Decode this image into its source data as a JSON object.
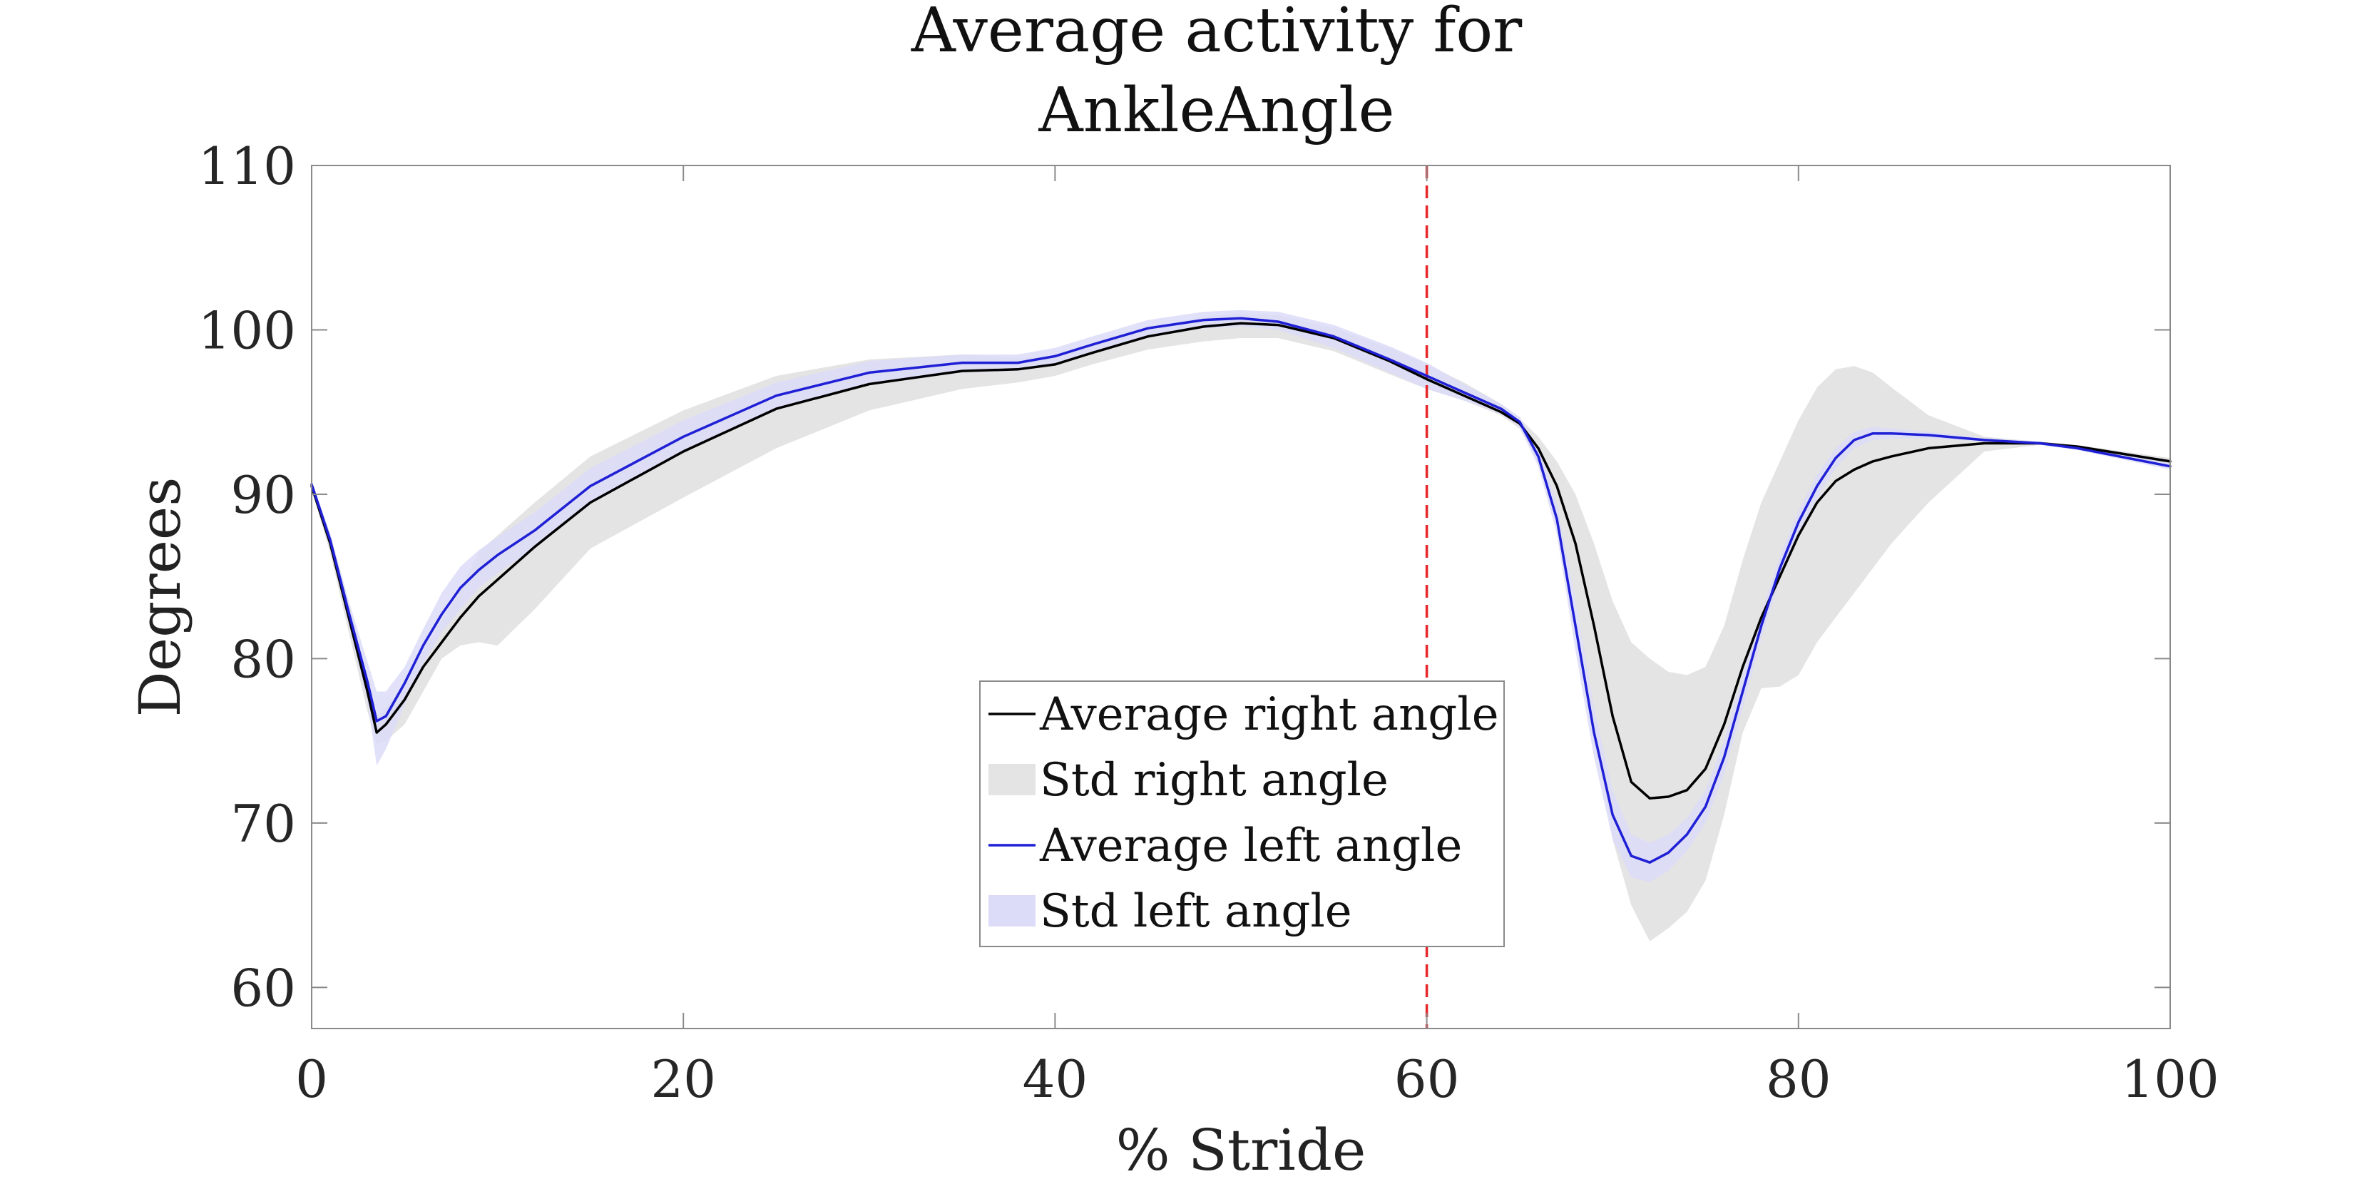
{
  "chart_data": {
    "type": "line",
    "title": [
      "Average activity for",
      "AnkleAngle"
    ],
    "xlabel": "% Stride",
    "ylabel": "Degrees",
    "xlim": [
      0,
      100
    ],
    "ylim": [
      57.5,
      110
    ],
    "xticks": [
      0,
      20,
      40,
      60,
      80,
      100
    ],
    "yticks": [
      60,
      70,
      80,
      90,
      100,
      110
    ],
    "x_tick_labels": [
      "0",
      "20",
      "40",
      "60",
      "80",
      "100"
    ],
    "y_tick_labels": [
      "60",
      "70",
      "80",
      "90",
      "100",
      "110"
    ],
    "grid": false,
    "legend_position": "bottom-center",
    "vertical_marker": {
      "x": 60,
      "color": "#e8262a",
      "style": "dashed"
    },
    "colors": {
      "right_line": "#000000",
      "right_band": "#e4e4e4",
      "left_line": "#1f1fd6",
      "left_band": "#dcdcf8"
    },
    "x": [
      0,
      1,
      2,
      3,
      3.5,
      4,
      5,
      6,
      7,
      8,
      9,
      10,
      12,
      15,
      20,
      25,
      30,
      35,
      38,
      40,
      42,
      45,
      48,
      50,
      52,
      55,
      58,
      60,
      62,
      64,
      65,
      66,
      67,
      68,
      69,
      70,
      71,
      72,
      73,
      74,
      75,
      76,
      77,
      78,
      79,
      80,
      81,
      82,
      83,
      84,
      85,
      87,
      90,
      93,
      95,
      100
    ],
    "series": [
      {
        "name": "Average right angle",
        "kind": "line",
        "values": [
          90.5,
          87.0,
          82.5,
          78.0,
          75.5,
          76.0,
          77.5,
          79.5,
          81.0,
          82.5,
          83.8,
          84.8,
          86.8,
          89.5,
          92.6,
          95.2,
          96.7,
          97.5,
          97.6,
          97.9,
          98.6,
          99.6,
          100.2,
          100.4,
          100.3,
          99.5,
          98.1,
          97.0,
          96.0,
          95.0,
          94.3,
          92.8,
          90.5,
          87.0,
          82.0,
          76.5,
          72.5,
          71.5,
          71.6,
          72.0,
          73.3,
          76.0,
          79.5,
          82.5,
          85.0,
          87.5,
          89.5,
          90.8,
          91.5,
          92.0,
          92.3,
          92.8,
          93.1,
          93.1,
          92.9,
          92.0
        ]
      },
      {
        "name": "Std right angle",
        "kind": "band",
        "upper": [
          90.7,
          87.6,
          83.4,
          78.8,
          76.5,
          77.0,
          78.5,
          80.5,
          82.3,
          84.2,
          86.5,
          87.5,
          89.5,
          92.3,
          95.1,
          97.2,
          98.2,
          98.5,
          98.3,
          98.4,
          99.0,
          100.1,
          100.8,
          101.0,
          100.9,
          100.1,
          98.9,
          97.9,
          96.8,
          95.5,
          94.6,
          93.5,
          92.0,
          90.0,
          87.0,
          83.5,
          81.0,
          80.0,
          79.2,
          79.0,
          79.5,
          82.0,
          86.0,
          89.5,
          92.0,
          94.5,
          96.5,
          97.6,
          97.8,
          97.4,
          96.5,
          94.8,
          93.5,
          93.2,
          93.0,
          92.2
        ],
        "lower": [
          90.3,
          86.4,
          81.6,
          76.8,
          74.8,
          75.0,
          76.0,
          78.0,
          80.0,
          80.8,
          81.0,
          80.8,
          83.0,
          86.7,
          89.8,
          92.8,
          95.1,
          96.4,
          96.8,
          97.2,
          97.9,
          98.8,
          99.3,
          99.5,
          99.5,
          98.7,
          97.3,
          96.4,
          95.7,
          94.8,
          94.0,
          91.9,
          88.6,
          83.5,
          76.0,
          69.0,
          65.0,
          62.8,
          63.6,
          64.6,
          66.5,
          70.5,
          75.5,
          78.2,
          78.3,
          79.0,
          81.0,
          82.5,
          84.0,
          85.5,
          87.0,
          89.5,
          92.6,
          93.0,
          92.8,
          91.8
        ]
      },
      {
        "name": "Average left angle",
        "kind": "line",
        "values": [
          90.6,
          87.2,
          82.8,
          78.6,
          76.2,
          76.5,
          78.5,
          80.8,
          82.7,
          84.3,
          85.4,
          86.3,
          87.8,
          90.5,
          93.5,
          96.0,
          97.4,
          98.0,
          98.0,
          98.4,
          99.1,
          100.1,
          100.6,
          100.7,
          100.5,
          99.6,
          98.2,
          97.2,
          96.2,
          95.2,
          94.4,
          92.3,
          88.5,
          82.0,
          75.5,
          70.5,
          68.0,
          67.6,
          68.2,
          69.3,
          71.0,
          74.0,
          78.0,
          82.0,
          85.5,
          88.3,
          90.5,
          92.2,
          93.3,
          93.7,
          93.7,
          93.6,
          93.3,
          93.1,
          92.8,
          91.7
        ]
      },
      {
        "name": "Std left angle",
        "kind": "band",
        "upper": [
          90.8,
          87.6,
          83.5,
          79.8,
          78.0,
          78.0,
          79.5,
          81.8,
          84.0,
          85.6,
          86.6,
          87.4,
          88.9,
          91.6,
          94.5,
          96.8,
          98.1,
          98.5,
          98.5,
          98.9,
          99.6,
          100.6,
          101.1,
          101.2,
          101.1,
          100.3,
          99.0,
          98.0,
          96.7,
          95.5,
          94.7,
          92.9,
          89.4,
          83.5,
          77.0,
          72.0,
          69.3,
          68.8,
          69.3,
          70.3,
          72.0,
          75.0,
          79.0,
          82.8,
          86.2,
          89.0,
          91.2,
          92.8,
          93.8,
          94.1,
          94.0,
          93.8,
          93.4,
          93.2,
          92.9,
          91.9
        ],
        "lower": [
          90.4,
          86.8,
          82.1,
          77.4,
          73.5,
          74.5,
          77.2,
          79.7,
          81.6,
          83.0,
          84.3,
          85.2,
          86.7,
          89.4,
          92.5,
          95.2,
          96.7,
          97.4,
          97.5,
          97.9,
          98.6,
          99.6,
          100.1,
          100.2,
          100.0,
          98.9,
          97.4,
          96.4,
          95.7,
          94.9,
          94.1,
          91.7,
          87.6,
          80.5,
          74.0,
          69.0,
          66.7,
          66.4,
          67.1,
          68.3,
          70.0,
          73.0,
          77.0,
          81.2,
          84.8,
          87.6,
          89.8,
          91.6,
          92.8,
          93.3,
          93.4,
          93.4,
          93.2,
          93.0,
          92.7,
          91.5
        ]
      }
    ],
    "legend": [
      {
        "label": "Average right angle",
        "kind": "line",
        "color": "#000000"
      },
      {
        "label": "Std right angle",
        "kind": "patch",
        "color": "#e4e4e4"
      },
      {
        "label": "Average left angle",
        "kind": "line",
        "color": "#1f1fd6"
      },
      {
        "label": "Std left angle",
        "kind": "patch",
        "color": "#dcdcf8"
      }
    ]
  }
}
